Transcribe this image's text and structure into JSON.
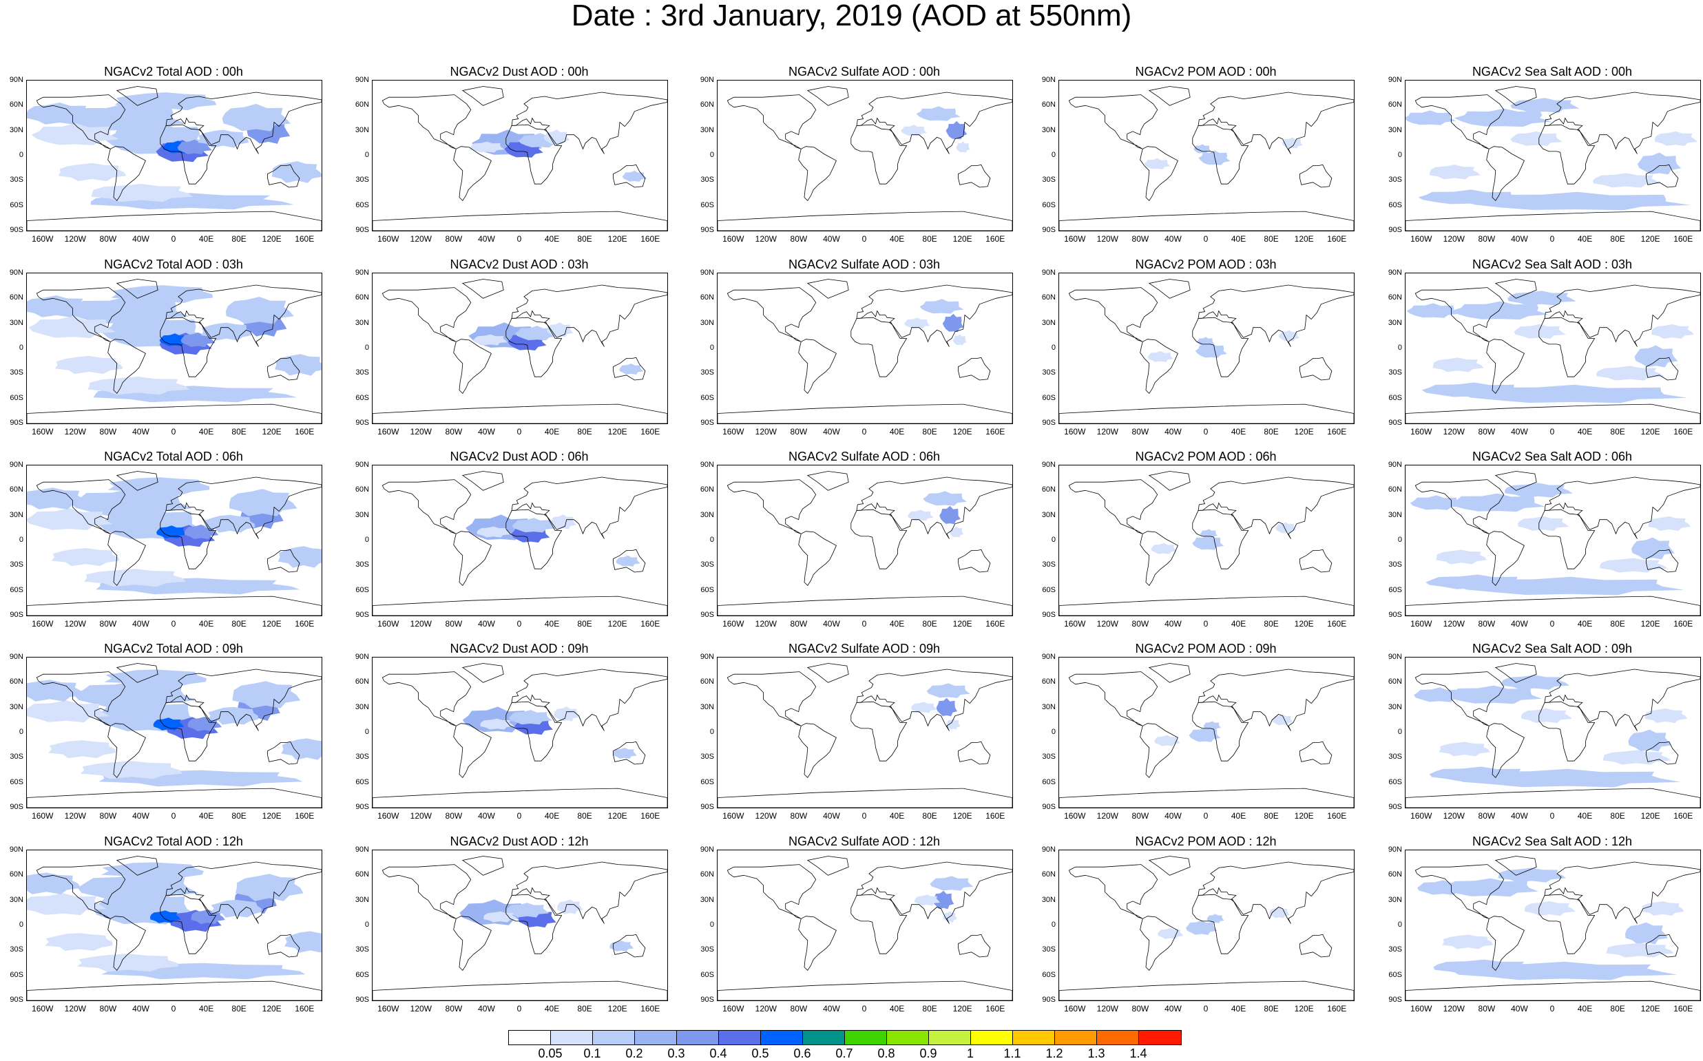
{
  "title": "Date : 3rd January, 2019 (AOD at 550nm)",
  "lat_labels": [
    "90N",
    "60N",
    "30N",
    "0",
    "30S",
    "60S",
    "90S"
  ],
  "lon_labels": [
    "160W",
    "120W",
    "80W",
    "40W",
    "0",
    "40E",
    "80E",
    "120E",
    "160E"
  ],
  "panels": [
    [
      "NGACv2 Total AOD : 00h",
      "NGACv2 Dust AOD : 00h",
      "NGACv2 Sulfate AOD : 00h",
      "NGACv2 POM AOD : 00h",
      "NGACv2 Sea Salt AOD : 00h"
    ],
    [
      "NGACv2 Total AOD : 03h",
      "NGACv2 Dust AOD : 03h",
      "NGACv2 Sulfate AOD : 03h",
      "NGACv2 POM AOD : 03h",
      "NGACv2 Sea Salt AOD : 03h"
    ],
    [
      "NGACv2 Total AOD : 06h",
      "NGACv2 Dust AOD : 06h",
      "NGACv2 Sulfate AOD : 06h",
      "NGACv2 POM AOD : 06h",
      "NGACv2 Sea Salt AOD : 06h"
    ],
    [
      "NGACv2 Total AOD : 09h",
      "NGACv2 Dust AOD : 09h",
      "NGACv2 Sulfate AOD : 09h",
      "NGACv2 POM AOD : 09h",
      "NGACv2 Sea Salt  AOD : 09h"
    ],
    [
      "NGACv2 Total AOD :  12h",
      "NGACv2 Dust AOD : 12h",
      "NGACv2 Sulfate AOD : 12h",
      "NGACv2 POM  AOD : 12h",
      "NGACv2 Sea Salt AOD : 12h"
    ]
  ],
  "colorbar": {
    "labels": [
      "0.05",
      "0.1",
      "0.2",
      "0.3",
      "0.4",
      "0.5",
      "0.6",
      "0.7",
      "0.8",
      "0.9",
      "1",
      "1.1",
      "1.2",
      "1.3",
      "1.4"
    ],
    "colors": [
      "#ffffff",
      "#d6e2fb",
      "#b8cdf7",
      "#9ab4f3",
      "#7e98ee",
      "#5b6fea",
      "#0062ff",
      "#00938c",
      "#3fd400",
      "#8ae600",
      "#c6f23f",
      "#ffff00",
      "#ffc800",
      "#ff9a00",
      "#ff6a00",
      "#ff1a00"
    ]
  }
}
